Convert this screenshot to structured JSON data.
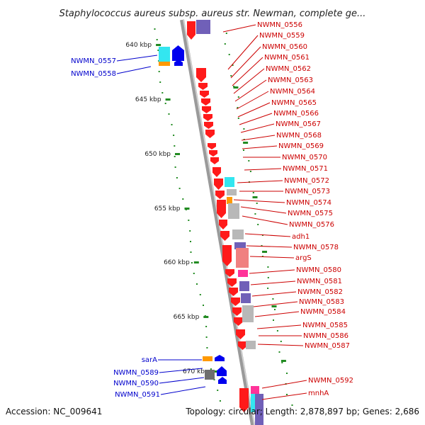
{
  "title": "Staphylococcus aureus subsp. aureus str. Newman, complete ge...",
  "footer": {
    "accession": "Accession: NC_009641",
    "summary": "Topology: circular; Length: 2,878,897 bp; Genes: 2,686"
  },
  "ticks": [
    "640 kbp",
    "645 kbp",
    "650 kbp",
    "655 kbp",
    "660 kbp",
    "665 kbp",
    "670 kbp"
  ],
  "left_labels": [
    "NWMN_0557",
    "NWMN_0558",
    "sarA",
    "NWMN_0589",
    "NWMN_0590",
    "NWMN_0591"
  ],
  "right_labels": [
    "NWMN_0556",
    "NWMN_0559",
    "NWMN_0560",
    "NWMN_0561",
    "NWMN_0562",
    "NWMN_0563",
    "NWMN_0564",
    "NWMN_0565",
    "NWMN_0566",
    "NWMN_0567",
    "NWMN_0568",
    "NWMN_0569",
    "NWMN_0570",
    "NWMN_0571",
    "NWMN_0572",
    "NWMN_0573",
    "NWMN_0574",
    "NWMN_0575",
    "NWMN_0576",
    "adh1",
    "NWMN_0578",
    "argS",
    "NWMN_0580",
    "NWMN_0581",
    "NWMN_0582",
    "NWMN_0583",
    "NWMN_0584",
    "NWMN_0585",
    "NWMN_0586",
    "NWMN_0587",
    "NWMN_0592",
    "mnhA"
  ],
  "colors": {
    "forward_gene": "#ff1a1a",
    "reverse_gene": "#0000ee",
    "cog_cyan": "#33e6f0",
    "cog_purple": "#7060b8",
    "cog_grey": "#b8b8b8",
    "cog_orange": "#ff9900",
    "cog_magenta": "#ff3399",
    "backbone": "#a0a0a0",
    "tick": "#228b22",
    "left_text": "#0000cc",
    "right_text": "#cc0000"
  }
}
